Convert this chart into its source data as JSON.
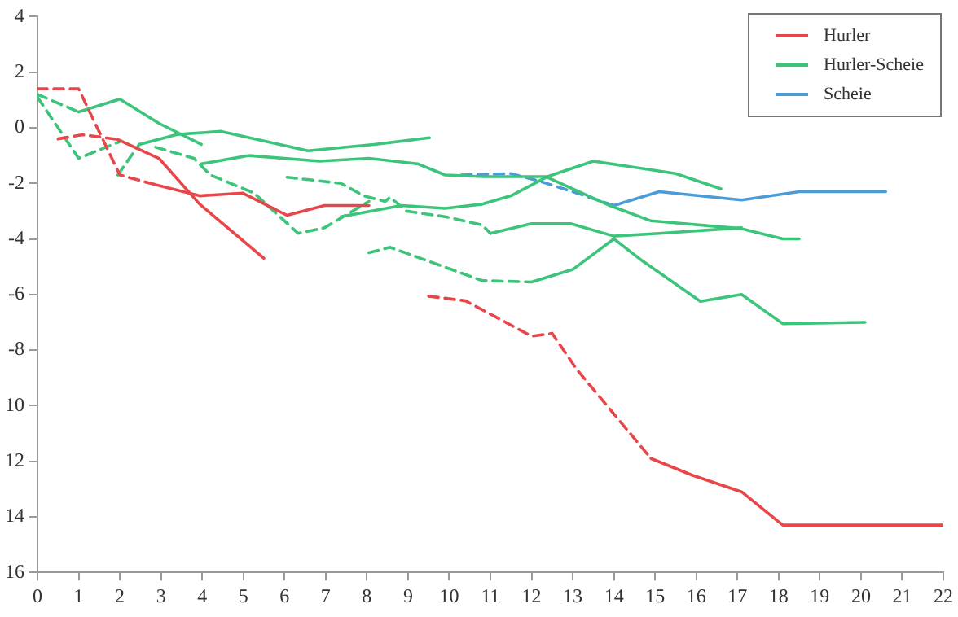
{
  "chart_data": {
    "type": "line",
    "xlim": [
      0,
      22
    ],
    "xticks": [
      0,
      1,
      2,
      3,
      4,
      5,
      6,
      7,
      8,
      9,
      10,
      11,
      12,
      13,
      14,
      15,
      16,
      17,
      18,
      19,
      20,
      21,
      22
    ],
    "ylim": [
      -16,
      4
    ],
    "yticks": [
      4,
      2,
      0,
      -2,
      -4,
      -6,
      -8,
      {
        "value": -10,
        "label": "10"
      },
      {
        "value": -12,
        "label": "12"
      },
      {
        "value": -14,
        "label": "14"
      },
      {
        "value": -16,
        "label": "16"
      }
    ],
    "grid": false,
    "legend": "top right",
    "marker": "none",
    "series": [
      {
        "name": "Hurler",
        "color": "#e8474a",
        "line_style": "solid",
        "x": [
          1.95,
          2.95,
          3.94,
          5.5
        ],
        "values": [
          -0.42,
          -1.1,
          -2.75,
          -4.7
        ]
      },
      {
        "color": "#e8474a",
        "line_style": "dashed",
        "x": [
          0.5,
          1.1,
          1.95
        ],
        "values": [
          -0.4,
          -0.25,
          -0.42
        ]
      },
      {
        "color": "#e8474a",
        "line_style": "dashed",
        "x": [
          0,
          1,
          2,
          2.87
        ],
        "values": [
          1.4,
          1.4,
          -1.7,
          -2.05
        ]
      },
      {
        "color": "#e8474a",
        "line_style": "solid",
        "x": [
          2.87,
          3.94,
          4.98,
          6.06,
          6.97,
          8.05
        ],
        "values": [
          -2.05,
          -2.45,
          -2.35,
          -3.15,
          -2.8,
          -2.8
        ]
      },
      {
        "color": "#e8474a",
        "line_style": "dashed",
        "x": [
          9.5,
          10.4,
          12,
          12.5,
          13.1,
          14.9
        ],
        "values": [
          -6.06,
          -6.23,
          -7.5,
          -7.4,
          -8.7,
          -11.9
        ]
      },
      {
        "color": "#e8474a",
        "line_style": "solid",
        "x": [
          14.9,
          15.9,
          17.1,
          18.1,
          22
        ],
        "values": [
          -11.9,
          -12.5,
          -13.1,
          -14.3,
          -14.3
        ]
      },
      {
        "name": "Hurler-Scheie",
        "color": "#3cc47a",
        "line_style": "solid",
        "x": [
          1,
          2,
          2.95,
          3.98
        ],
        "values": [
          0.57,
          1.03,
          0.16,
          -0.6
        ]
      },
      {
        "color": "#3cc47a",
        "line_style": "dashed",
        "x": [
          0,
          1
        ],
        "values": [
          1.2,
          0.57
        ]
      },
      {
        "color": "#3cc47a",
        "line_style": "dashed",
        "x": [
          0,
          1,
          2
        ],
        "values": [
          1.1,
          -1.1,
          -0.5
        ]
      },
      {
        "color": "#3cc47a",
        "line_style": "dashed",
        "x": [
          1.95,
          2.47
        ],
        "values": [
          -1.7,
          -0.6
        ]
      },
      {
        "color": "#3cc47a",
        "line_style": "solid",
        "x": [
          2.47,
          3.39,
          4.46,
          6.57,
          8.17,
          9.52
        ],
        "values": [
          -0.6,
          -0.24,
          -0.13,
          -0.83,
          -0.6,
          -0.36
        ]
      },
      {
        "color": "#3cc47a",
        "line_style": "solid",
        "x": [
          3.98,
          5.14,
          6.85,
          8.05,
          9.24,
          9.9,
          10.8,
          12.35,
          13.9,
          14.9,
          17.1,
          18.1,
          18.5
        ],
        "values": [
          -1.3,
          -1,
          -1.2,
          -1.1,
          -1.3,
          -1.7,
          -1.76,
          -1.76,
          -2.8,
          -3.35,
          -3.63,
          -4,
          -4
        ]
      },
      {
        "color": "#3cc47a",
        "line_style": "dashed",
        "x": [
          2.87,
          3.8,
          4.2,
          5.26,
          6.33,
          6.97,
          8.05
        ],
        "values": [
          -0.7,
          -1.1,
          -1.7,
          -2.35,
          -3.8,
          -3.6,
          -2.65
        ]
      },
      {
        "color": "#3cc47a",
        "line_style": "solid",
        "x": [
          7.37,
          8.84,
          9.9,
          10.8,
          11.5,
          12.4,
          13.5,
          15.5,
          16.6
        ],
        "values": [
          -3.2,
          -2.8,
          -2.9,
          -2.75,
          -2.45,
          -1.75,
          -1.2,
          -1.65,
          -2.2
        ]
      },
      {
        "color": "#3cc47a",
        "line_style": "dashed",
        "x": [
          6.06,
          7.37,
          7.93,
          8.45,
          8.56,
          8.96,
          9.9,
          10.8,
          11
        ],
        "values": [
          -1.78,
          -2,
          -2.45,
          -2.65,
          -2.5,
          -3,
          -3.2,
          -3.5,
          -3.8
        ]
      },
      {
        "color": "#3cc47a",
        "line_style": "solid",
        "x": [
          11,
          12,
          12.95,
          14,
          15.1,
          17.1
        ],
        "values": [
          -3.8,
          -3.45,
          -3.45,
          -3.9,
          -3.8,
          -3.6
        ]
      },
      {
        "color": "#3cc47a",
        "line_style": "dashed",
        "x": [
          8.05,
          8.56,
          10.8,
          12
        ],
        "values": [
          -4.5,
          -4.3,
          -5.5,
          -5.55
        ]
      },
      {
        "color": "#3cc47a",
        "line_style": "solid",
        "x": [
          12,
          13,
          14,
          14.7,
          16.1,
          17.1,
          18.1,
          20.1
        ],
        "values": [
          -5.55,
          -5.1,
          -4,
          -4.8,
          -6.25,
          -6,
          -7.05,
          -7
        ]
      },
      {
        "name": "Scheie",
        "color": "#4a9bd6",
        "line_style": "dashed",
        "x": [
          10.3,
          11.5,
          12.15,
          13.1,
          14
        ],
        "values": [
          -1.7,
          -1.65,
          -1.9,
          -2.35,
          -2.8
        ]
      },
      {
        "color": "#4a9bd6",
        "line_style": "solid",
        "x": [
          14,
          15.1,
          17.1,
          18.5,
          20.6
        ],
        "values": [
          -2.8,
          -2.3,
          -2.6,
          -2.3,
          -2.3
        ]
      }
    ]
  }
}
